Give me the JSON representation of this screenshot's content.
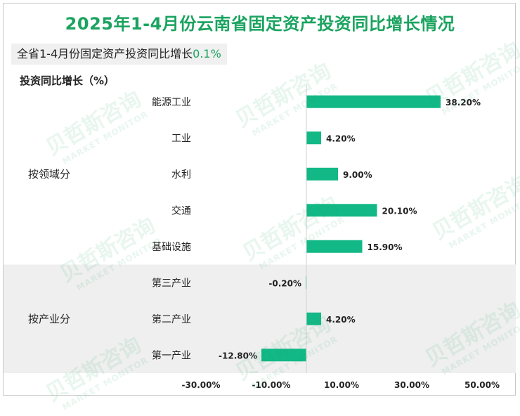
{
  "title": "2025年1-4月份云南省固定资产投资同比增长情况",
  "summary": {
    "label": "全省1-4月份固定资产投资同比增长",
    "value": "0.1%"
  },
  "watermark": {
    "cn": "贝哲斯咨询",
    "en": "MARKET MONITOR"
  },
  "colors": {
    "bar": "#12b886",
    "title": "#1aa35f",
    "band": "#efefef"
  },
  "chart_data": {
    "type": "bar",
    "orientation": "horizontal",
    "ylabel": "投资同比增长（%）",
    "groups": [
      {
        "name": "按领域分",
        "categories": [
          "能源工业",
          "工业",
          "水利",
          "交通",
          "基础设施"
        ],
        "values": [
          38.2,
          4.2,
          9.0,
          20.1,
          15.9
        ],
        "labels": [
          "38.20%",
          "4.20%",
          "9.00%",
          "20.10%",
          "15.90%"
        ]
      },
      {
        "name": "按产业分",
        "categories": [
          "第三产业",
          "第二产业",
          "第一产业"
        ],
        "values": [
          -0.2,
          4.2,
          -12.8
        ],
        "labels": [
          "-0.20%",
          "4.20%",
          "-12.80%"
        ]
      }
    ],
    "xlim": [
      -30,
      50
    ],
    "xticks": [
      -30,
      -10,
      10,
      30,
      50
    ],
    "xtick_labels": [
      "-30.00%",
      "-10.00%",
      "10.00%",
      "30.00%",
      "50.00%"
    ],
    "grid": false,
    "legend": "none"
  }
}
